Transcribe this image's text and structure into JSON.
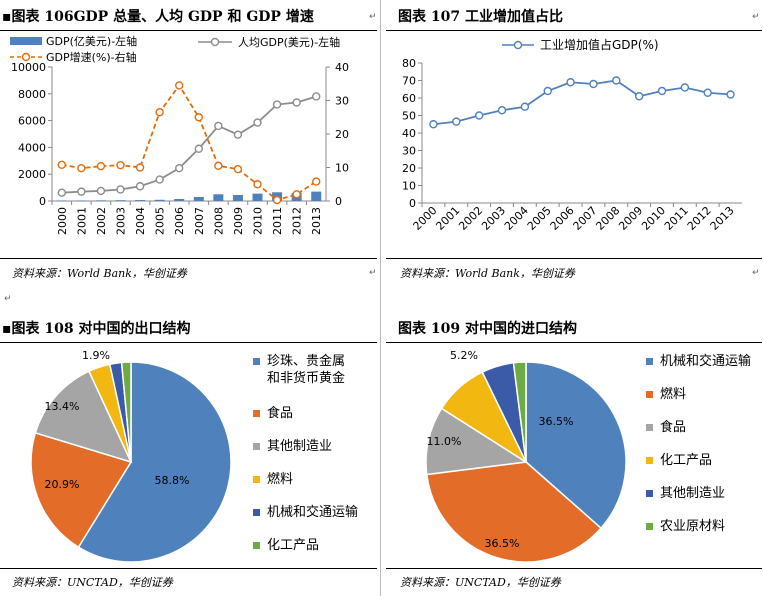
{
  "panels": {
    "p106": {
      "title": "▪图表 106GDP 总量、人均 GDP 和 GDP 增速",
      "source": "资料来源：World Bank，华创证券",
      "legend": {
        "gdp": "GDP(亿美元)-左轴",
        "per_capita": "人均GDP(美元)-左轴",
        "growth": "GDP增速(%)-右轴"
      }
    },
    "p107": {
      "title": "图表 107 工业增加值占比",
      "source": "资料来源：World Bank，华创证券",
      "legend": {
        "industry": "工业增加值占GDP(%)"
      }
    },
    "p108": {
      "title": "▪图表 108 对中国的出口结构",
      "source": "资料来源：UNCTAD，华创证券"
    },
    "p109": {
      "title": "图表 109 对中国的进口结构",
      "source": "资料来源：UNCTAD，华创证券"
    }
  },
  "colors": {
    "blue": "#4f81bd",
    "orange": "#e46c0a",
    "gray_line": "#8c8c8c",
    "pie_blue": "#4f81bd",
    "pie_orange": "#e36c29",
    "pie_gray": "#a5a5a5",
    "pie_yellow": "#f2b811",
    "pie_navy": "#3b5ba8",
    "pie_green": "#6eaa46"
  },
  "chart_data": [
    {
      "id": "p106",
      "type": "bar+line",
      "x": [
        "2000",
        "2001",
        "2002",
        "2003",
        "2004",
        "2005",
        "2006",
        "2007",
        "2008",
        "2009",
        "2010",
        "2011",
        "2012",
        "2013"
      ],
      "series": [
        {
          "name": "GDP(亿美元)-左轴",
          "kind": "bar",
          "axis": "left",
          "values": [
            40,
            40,
            50,
            60,
            70,
            90,
            150,
            300,
            500,
            450,
            550,
            650,
            600,
            700
          ]
        },
        {
          "name": "人均GDP(美元)-左轴",
          "kind": "line",
          "axis": "left",
          "values": [
            620,
            700,
            750,
            860,
            1100,
            1600,
            2450,
            3900,
            5600,
            4950,
            5850,
            7200,
            7350,
            7800
          ]
        },
        {
          "name": "GDP增速(%)-右轴",
          "kind": "line",
          "axis": "right",
          "values": [
            10.8,
            9.8,
            10.4,
            10.7,
            10.0,
            26.5,
            34.5,
            25.0,
            10.5,
            9.5,
            5.0,
            0.3,
            2.0,
            5.8
          ]
        }
      ],
      "y_left": {
        "range": [
          0,
          10000
        ],
        "ticks": [
          "0",
          "2000",
          "4000",
          "6000",
          "8000",
          "10000"
        ]
      },
      "y_right": {
        "range": [
          0,
          40
        ],
        "ticks": [
          "0",
          "10",
          "20",
          "30",
          "40"
        ]
      },
      "grid": false,
      "legend_position": "top"
    },
    {
      "id": "p107",
      "type": "line",
      "x": [
        "2000",
        "2001",
        "2002",
        "2003",
        "2004",
        "2005",
        "2006",
        "2007",
        "2008",
        "2009",
        "2010",
        "2011",
        "2012",
        "2013"
      ],
      "series": [
        {
          "name": "工业增加值占GDP(%)",
          "values": [
            45,
            46.5,
            50,
            53,
            55,
            64,
            69,
            68,
            70,
            61,
            64,
            66,
            63,
            62
          ]
        }
      ],
      "y": {
        "range": [
          0,
          80
        ],
        "ticks": [
          "0",
          "10",
          "20",
          "30",
          "40",
          "50",
          "60",
          "70",
          "80"
        ]
      },
      "grid": false,
      "legend_position": "top"
    },
    {
      "id": "p108",
      "type": "pie",
      "slices": [
        {
          "label": "珍珠、贵金属和非货币黄金",
          "value": 58.8,
          "text": "58.8%",
          "color_key": "pie_blue"
        },
        {
          "label": "食品",
          "value": 20.9,
          "text": "20.9%",
          "color_key": "pie_orange"
        },
        {
          "label": "其他制造业",
          "value": 13.4,
          "text": "13.4%",
          "color_key": "pie_gray"
        },
        {
          "label": "燃料",
          "value": 3.5,
          "text": "",
          "color_key": "pie_yellow"
        },
        {
          "label": "机械和交通运输",
          "value": 1.9,
          "text": "1.9%",
          "color_key": "pie_navy"
        },
        {
          "label": "化工产品",
          "value": 1.5,
          "text": "",
          "color_key": "pie_green"
        }
      ],
      "legend_position": "right"
    },
    {
      "id": "p109",
      "type": "pie",
      "slices": [
        {
          "label": "机械和交通运输",
          "value": 36.5,
          "text": "36.5%",
          "color_key": "pie_blue"
        },
        {
          "label": "燃料",
          "value": 36.5,
          "text": "36.5%",
          "color_key": "pie_orange"
        },
        {
          "label": "食品",
          "value": 11.0,
          "text": "11.0%",
          "color_key": "pie_gray"
        },
        {
          "label": "化工产品",
          "value": 8.8,
          "text": "",
          "color_key": "pie_yellow"
        },
        {
          "label": "其他制造业",
          "value": 5.2,
          "text": "5.2%",
          "color_key": "pie_navy"
        },
        {
          "label": "农业原材料",
          "value": 2.0,
          "text": "",
          "color_key": "pie_green"
        }
      ],
      "legend_position": "right"
    }
  ]
}
